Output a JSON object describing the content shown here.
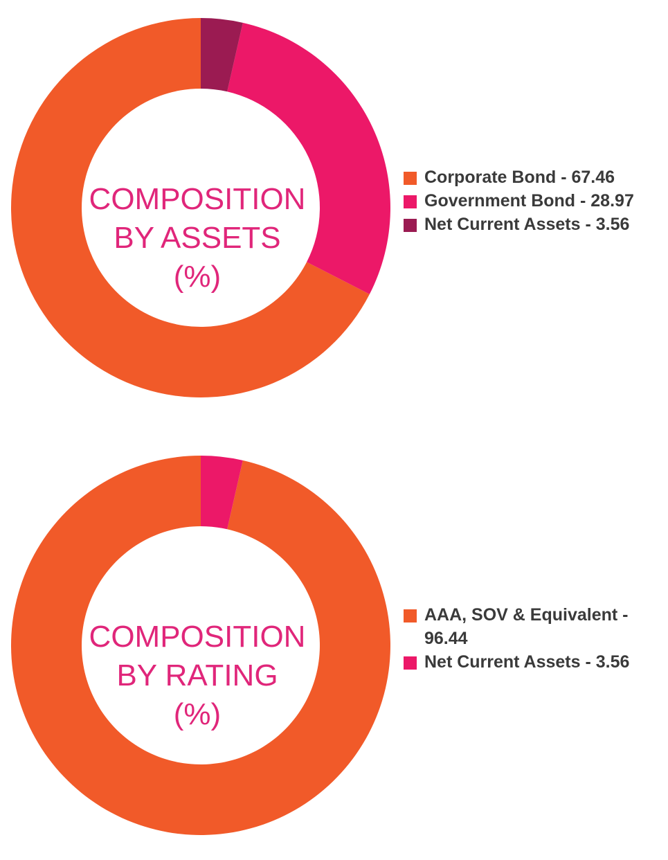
{
  "chart_data": [
    {
      "type": "pie",
      "variant": "donut",
      "title_lines": [
        "COMPOSITION",
        "BY ASSETS",
        "(%)"
      ],
      "slices": [
        {
          "label": "Corporate Bond",
          "legend_label": "Corporate Bond - 67.46",
          "value": 67.46,
          "color": "#f15a29"
        },
        {
          "label": "Government Bond",
          "legend_label": "Government Bond - 28.97",
          "value": 28.97,
          "color": "#ec1868"
        },
        {
          "label": "Net Current Assets",
          "legend_label": "Net Current Assets - 3.56",
          "value": 3.56,
          "color": "#9b1b52"
        }
      ],
      "legend_position": "right"
    },
    {
      "type": "pie",
      "variant": "donut",
      "title_lines": [
        "COMPOSITION",
        "BY RATING",
        "(%)"
      ],
      "slices": [
        {
          "label": "AAA, SOV & Equivalent",
          "legend_label": "AAA, SOV & Equivalent - 96.44",
          "value": 96.44,
          "color": "#f15a29"
        },
        {
          "label": "Net Current Assets",
          "legend_label": "Net Current Assets - 3.56",
          "value": 3.56,
          "color": "#ec1868"
        }
      ],
      "legend_position": "right"
    }
  ]
}
